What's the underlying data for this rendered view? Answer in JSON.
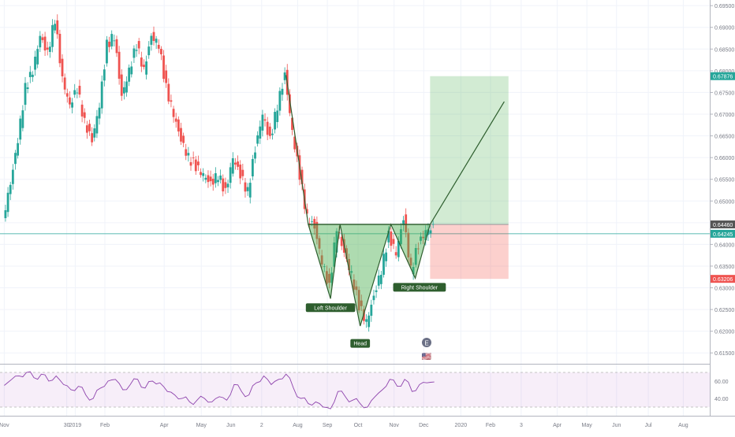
{
  "chart_data": {
    "type": "candlestick",
    "title": "",
    "xlabel": "",
    "ylabel": "",
    "ylim": [
      0.6125,
      0.6963
    ],
    "y_ticks": [
      "0.69500",
      "0.69000",
      "0.68500",
      "0.68000",
      "0.67500",
      "0.67000",
      "0.66500",
      "0.66000",
      "0.65500",
      "0.65000",
      "0.64500",
      "0.64000",
      "0.63500",
      "0.63000",
      "0.62500",
      "0.62000",
      "0.61500"
    ],
    "x_ticks": [
      "Nov",
      "30",
      "2019",
      "Feb",
      "Apr",
      "May",
      "Jun",
      "2",
      "Aug",
      "Sep",
      "Oct",
      "Nov",
      "Dec",
      "2020",
      "Feb",
      "3",
      "Apr",
      "May",
      "Jun",
      "Jul",
      "Aug"
    ],
    "price_series": [
      [
        "2018-11-01",
        0.646
      ],
      [
        "2018-11-08",
        0.654
      ],
      [
        "2018-11-15",
        0.664
      ],
      [
        "2018-11-22",
        0.676
      ],
      [
        "2018-11-29",
        0.68
      ],
      [
        "2018-12-06",
        0.688
      ],
      [
        "2018-12-13",
        0.684
      ],
      [
        "2018-12-20",
        0.692
      ],
      [
        "2018-12-27",
        0.678
      ],
      [
        "2019-01-03",
        0.672
      ],
      [
        "2019-01-10",
        0.676
      ],
      [
        "2019-01-17",
        0.668
      ],
      [
        "2019-01-24",
        0.664
      ],
      [
        "2019-01-31",
        0.672
      ],
      [
        "2019-02-07",
        0.686
      ],
      [
        "2019-02-14",
        0.688
      ],
      [
        "2019-02-21",
        0.674
      ],
      [
        "2019-02-28",
        0.68
      ],
      [
        "2019-03-07",
        0.686
      ],
      [
        "2019-03-14",
        0.68
      ],
      [
        "2019-03-21",
        0.688
      ],
      [
        "2019-03-28",
        0.686
      ],
      [
        "2019-04-04",
        0.676
      ],
      [
        "2019-04-11",
        0.67
      ],
      [
        "2019-04-18",
        0.664
      ],
      [
        "2019-04-25",
        0.66
      ],
      [
        "2019-05-02",
        0.658
      ],
      [
        "2019-05-09",
        0.656
      ],
      [
        "2019-05-16",
        0.654
      ],
      [
        "2019-05-23",
        0.656
      ],
      [
        "2019-05-30",
        0.652
      ],
      [
        "2019-06-06",
        0.66
      ],
      [
        "2019-06-13",
        0.656
      ],
      [
        "2019-06-20",
        0.652
      ],
      [
        "2019-06-27",
        0.662
      ],
      [
        "2019-07-04",
        0.67
      ],
      [
        "2019-07-11",
        0.664
      ],
      [
        "2019-07-18",
        0.672
      ],
      [
        "2019-07-25",
        0.679
      ],
      [
        "2019-08-01",
        0.666
      ],
      [
        "2019-08-08",
        0.656
      ],
      [
        "2019-08-15",
        0.646
      ],
      [
        "2019-08-22",
        0.644
      ],
      [
        "2019-08-29",
        0.636
      ],
      [
        "2019-09-05",
        0.63
      ],
      [
        "2019-09-12",
        0.644
      ],
      [
        "2019-09-19",
        0.638
      ],
      [
        "2019-09-26",
        0.633
      ],
      [
        "2019-10-03",
        0.626
      ],
      [
        "2019-10-10",
        0.622
      ],
      [
        "2019-10-17",
        0.628
      ],
      [
        "2019-10-24",
        0.634
      ],
      [
        "2019-10-31",
        0.642
      ],
      [
        "2019-11-07",
        0.638
      ],
      [
        "2019-11-14",
        0.646
      ],
      [
        "2019-11-21",
        0.634
      ],
      [
        "2019-11-28",
        0.64
      ],
      [
        "2019-12-05",
        0.643
      ],
      [
        "2019-12-12",
        0.644
      ]
    ],
    "pattern": {
      "name": "head-and-shoulders",
      "labels": [
        {
          "text": "Left Shoulder",
          "date": "2019-09-05",
          "price": 0.6275
        },
        {
          "text": "Head",
          "date": "2019-10-03",
          "price": 0.62
        },
        {
          "text": "Right Shoulder",
          "date": "2019-11-28",
          "price": 0.6322
        }
      ]
    },
    "position": {
      "entry": 0.6446,
      "target": 0.67876,
      "stop": 0.63206,
      "start_date": "2019-12-08",
      "end_date": "2020-02-20"
    },
    "price_labels": [
      {
        "value": "0.67876",
        "price": 0.67876,
        "color": "#26a69a"
      },
      {
        "value": "0.64460",
        "price": 0.6446,
        "color": "#555555"
      },
      {
        "value": "0.64245",
        "price": 0.64245,
        "color": "#26a69a"
      },
      {
        "value": "0.63206",
        "price": 0.63206,
        "color": "#ef5350"
      }
    ],
    "current_price": 0.64245,
    "rsi": {
      "ylim": [
        20,
        80
      ],
      "y_ticks": [
        "60.00",
        "40.00"
      ],
      "upper": 70,
      "lower": 30,
      "series": [
        [
          "2018-11-01",
          55
        ],
        [
          "2018-11-08",
          62
        ],
        [
          "2018-11-15",
          66
        ],
        [
          "2018-11-22",
          70
        ],
        [
          "2018-11-29",
          64
        ],
        [
          "2018-12-06",
          68
        ],
        [
          "2018-12-13",
          60
        ],
        [
          "2018-12-20",
          66
        ],
        [
          "2018-12-27",
          56
        ],
        [
          "2019-01-03",
          50
        ],
        [
          "2019-01-10",
          54
        ],
        [
          "2019-01-17",
          44
        ],
        [
          "2019-01-24",
          40
        ],
        [
          "2019-01-31",
          52
        ],
        [
          "2019-02-07",
          60
        ],
        [
          "2019-02-14",
          62
        ],
        [
          "2019-02-21",
          50
        ],
        [
          "2019-02-28",
          56
        ],
        [
          "2019-03-07",
          62
        ],
        [
          "2019-03-14",
          52
        ],
        [
          "2019-03-21",
          60
        ],
        [
          "2019-03-28",
          58
        ],
        [
          "2019-04-04",
          48
        ],
        [
          "2019-04-11",
          44
        ],
        [
          "2019-04-18",
          40
        ],
        [
          "2019-04-25",
          36
        ],
        [
          "2019-05-02",
          38
        ],
        [
          "2019-05-09",
          40
        ],
        [
          "2019-05-16",
          36
        ],
        [
          "2019-05-23",
          42
        ],
        [
          "2019-05-30",
          38
        ],
        [
          "2019-06-06",
          56
        ],
        [
          "2019-06-13",
          48
        ],
        [
          "2019-06-20",
          44
        ],
        [
          "2019-06-27",
          58
        ],
        [
          "2019-07-04",
          66
        ],
        [
          "2019-07-11",
          56
        ],
        [
          "2019-07-18",
          62
        ],
        [
          "2019-07-25",
          68
        ],
        [
          "2019-08-01",
          52
        ],
        [
          "2019-08-08",
          40
        ],
        [
          "2019-08-15",
          34
        ],
        [
          "2019-08-22",
          36
        ],
        [
          "2019-08-29",
          30
        ],
        [
          "2019-09-05",
          28
        ],
        [
          "2019-09-12",
          48
        ],
        [
          "2019-09-19",
          42
        ],
        [
          "2019-09-26",
          38
        ],
        [
          "2019-10-03",
          34
        ],
        [
          "2019-10-10",
          30
        ],
        [
          "2019-10-17",
          42
        ],
        [
          "2019-10-24",
          50
        ],
        [
          "2019-10-31",
          62
        ],
        [
          "2019-11-07",
          54
        ],
        [
          "2019-11-14",
          62
        ],
        [
          "2019-11-21",
          48
        ],
        [
          "2019-11-28",
          56
        ],
        [
          "2019-12-05",
          58
        ],
        [
          "2019-12-12",
          59
        ]
      ]
    }
  },
  "events": {
    "earnings_label": "E",
    "flag_label": "🇺🇸"
  }
}
